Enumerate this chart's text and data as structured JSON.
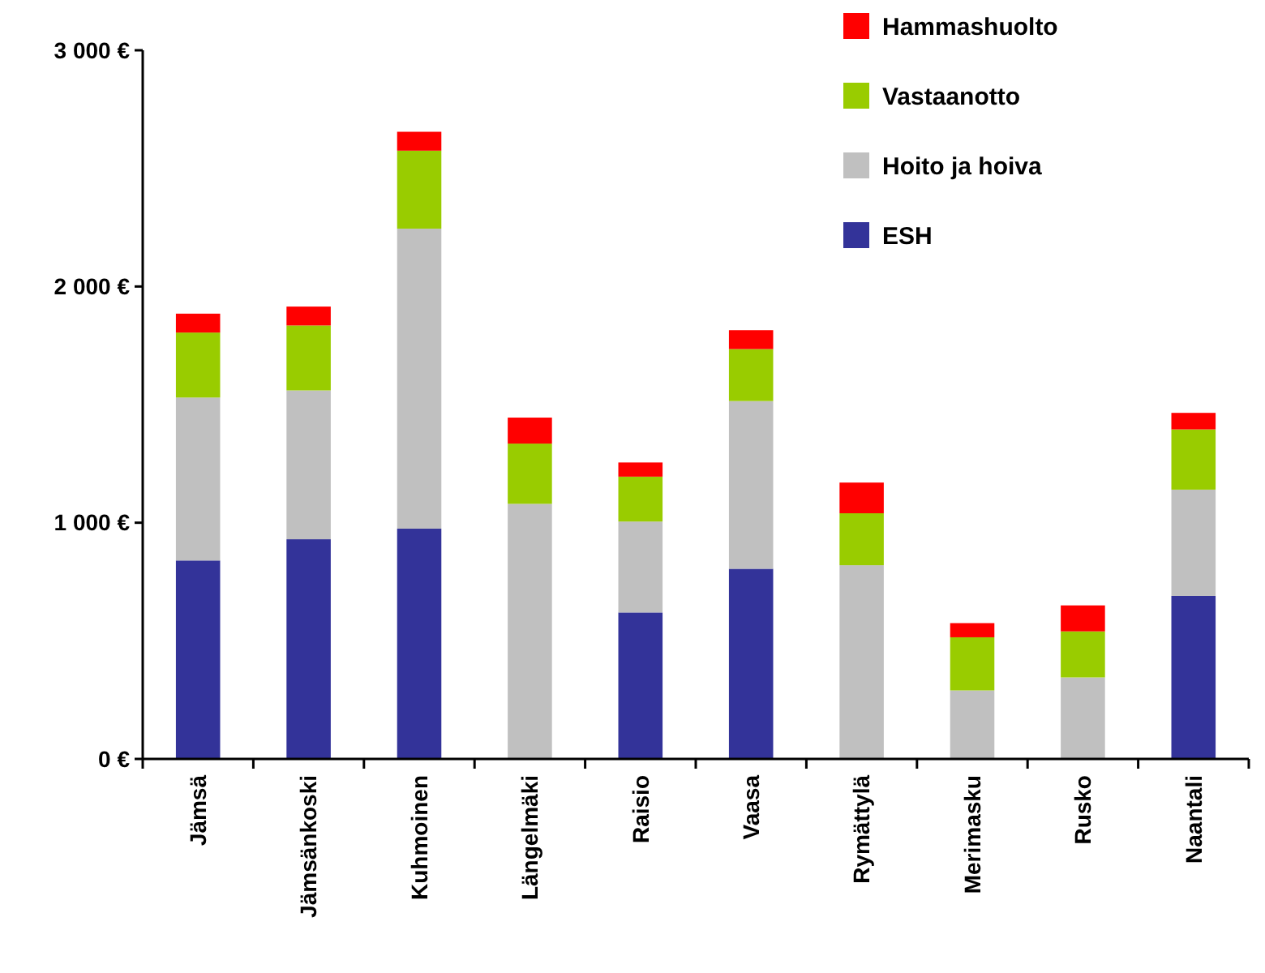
{
  "chart_data": {
    "type": "bar",
    "stacked": true,
    "categories": [
      "Jämsä",
      "Jämsänkoski",
      "Kuhmoinen",
      "Längelmäki",
      "Raisio",
      "Vaasa",
      "Rymättylä",
      "Merimasku",
      "Rusko",
      "Naantali"
    ],
    "series": [
      {
        "name": "ESH",
        "color": "#333399",
        "values": [
          840,
          930,
          975,
          0,
          620,
          805,
          0,
          0,
          0,
          690
        ]
      },
      {
        "name": "Hoito ja hoiva",
        "color": "#c0c0c0",
        "values": [
          690,
          630,
          1270,
          1080,
          385,
          710,
          820,
          290,
          345,
          450
        ]
      },
      {
        "name": "Vastaanotto",
        "color": "#99cc00",
        "values": [
          275,
          275,
          330,
          255,
          190,
          220,
          220,
          225,
          195,
          255
        ]
      },
      {
        "name": "Hammashuolto",
        "color": "#ff0000",
        "values": [
          80,
          80,
          80,
          110,
          60,
          80,
          130,
          60,
          110,
          70
        ]
      }
    ],
    "ylim": [
      0,
      3000
    ],
    "yticks": [
      {
        "value": 0,
        "label": "0 €"
      },
      {
        "value": 1000,
        "label": "1 000 €"
      },
      {
        "value": 2000,
        "label": "2 000 €"
      },
      {
        "value": 3000,
        "label": "3 000 €"
      }
    ],
    "grid": false,
    "legend": "top right"
  }
}
